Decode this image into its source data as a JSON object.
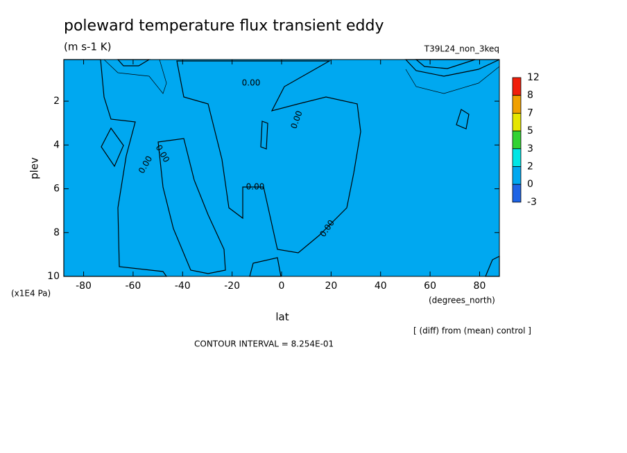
{
  "chart_data": {
    "type": "contour",
    "title": "poleward temperature flux transient eddy",
    "subtitle": "(m s-1 K)",
    "run_label": "T39L24_non_3keq",
    "x_label": "lat",
    "x_unit": "(degrees_north)",
    "y_label": "plev",
    "y_unit": "(x1E4 Pa)",
    "footnote": "[ (diff) from (mean) control ]",
    "contour_interval": "CONTOUR INTERVAL = 8.254E-01",
    "xlim": [
      -88,
      88
    ],
    "xticks": [
      -80,
      -60,
      -40,
      -20,
      0,
      20,
      40,
      60,
      80
    ],
    "ylim": [
      10,
      0.1
    ],
    "yticks": [
      2,
      4,
      6,
      8,
      10
    ],
    "levels": [
      12,
      8,
      7,
      5,
      3,
      2,
      0,
      -3
    ],
    "colors": [
      "#f01e0a",
      "#f0a000",
      "#e6e600",
      "#32d232",
      "#00e6e6",
      "#00a8f0",
      "#1e64e6"
    ],
    "contour_labels": [
      "0.00",
      "0.00",
      "0.00",
      "0.00",
      "0.00",
      "0.00"
    ]
  }
}
